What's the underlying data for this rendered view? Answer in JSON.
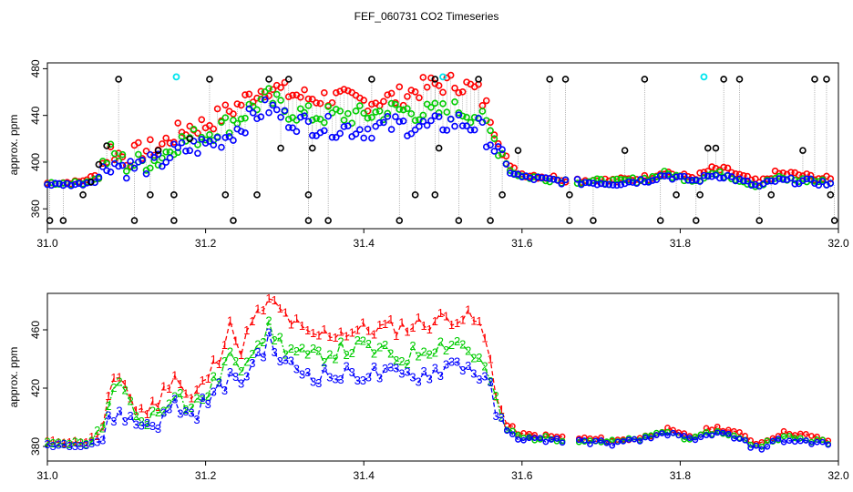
{
  "title": "FEF_060731  CO2 Timeseries",
  "colors": {
    "series1": "#ff0000",
    "series2": "#00cc00",
    "series3": "#0000ff",
    "black": "#000000",
    "cyan": "#00e5ee",
    "connector": "#9a9a9a"
  },
  "chart_data": [
    {
      "type": "scatter",
      "id": "panel-top",
      "ylabel": "approx. ppm",
      "xlabel": "",
      "xlim": [
        31.0,
        32.0
      ],
      "ylim": [
        343,
        485
      ],
      "xticks": [
        "31.0",
        "31.2",
        "31.4",
        "31.6",
        "31.8",
        "32.0"
      ],
      "yticks": [
        "360",
        "400",
        "440",
        "480"
      ],
      "legend": "none",
      "anchors_red": [
        [
          31.0,
          382
        ],
        [
          31.04,
          383
        ],
        [
          31.06,
          388
        ],
        [
          31.08,
          410
        ],
        [
          31.1,
          403
        ],
        [
          31.12,
          410
        ],
        [
          31.14,
          412
        ],
        [
          31.16,
          423
        ],
        [
          31.18,
          430
        ],
        [
          31.2,
          432
        ],
        [
          31.22,
          440
        ],
        [
          31.24,
          448
        ],
        [
          31.26,
          458
        ],
        [
          31.28,
          465
        ],
        [
          31.3,
          460
        ],
        [
          31.33,
          455
        ],
        [
          31.36,
          455
        ],
        [
          31.4,
          452
        ],
        [
          31.44,
          455
        ],
        [
          31.48,
          465
        ],
        [
          31.52,
          468
        ],
        [
          31.545,
          460
        ],
        [
          31.56,
          440
        ],
        [
          31.575,
          415
        ],
        [
          31.585,
          395
        ],
        [
          31.6,
          390
        ],
        [
          31.66,
          385
        ],
        [
          31.72,
          384
        ],
        [
          31.76,
          387
        ],
        [
          31.78,
          392
        ],
        [
          31.8,
          388
        ],
        [
          31.82,
          387
        ],
        [
          31.84,
          394
        ],
        [
          31.86,
          393
        ],
        [
          31.88,
          387
        ],
        [
          31.9,
          382
        ],
        [
          31.92,
          390
        ],
        [
          31.94,
          390
        ],
        [
          31.97,
          387
        ],
        [
          31.99,
          385
        ]
      ],
      "anchors_green": [
        [
          31.0,
          382
        ],
        [
          31.04,
          382
        ],
        [
          31.06,
          385
        ],
        [
          31.08,
          408
        ],
        [
          31.1,
          398
        ],
        [
          31.12,
          400
        ],
        [
          31.14,
          402
        ],
        [
          31.16,
          415
        ],
        [
          31.18,
          420
        ],
        [
          31.2,
          424
        ],
        [
          31.22,
          430
        ],
        [
          31.24,
          437
        ],
        [
          31.26,
          448
        ],
        [
          31.28,
          455
        ],
        [
          31.3,
          445
        ],
        [
          31.33,
          440
        ],
        [
          31.36,
          440
        ],
        [
          31.4,
          440
        ],
        [
          31.44,
          445
        ],
        [
          31.48,
          442
        ],
        [
          31.52,
          445
        ],
        [
          31.545,
          440
        ],
        [
          31.56,
          425
        ],
        [
          31.575,
          408
        ],
        [
          31.585,
          393
        ],
        [
          31.6,
          388
        ],
        [
          31.66,
          384
        ],
        [
          31.72,
          383
        ],
        [
          31.76,
          386
        ],
        [
          31.78,
          390
        ],
        [
          31.8,
          387
        ],
        [
          31.82,
          385
        ],
        [
          31.84,
          390
        ],
        [
          31.86,
          389
        ],
        [
          31.88,
          384
        ],
        [
          31.9,
          380
        ],
        [
          31.92,
          386
        ],
        [
          31.94,
          385
        ],
        [
          31.97,
          384
        ],
        [
          31.99,
          382
        ]
      ],
      "anchors_blue": [
        [
          31.0,
          381
        ],
        [
          31.04,
          381
        ],
        [
          31.06,
          384
        ],
        [
          31.08,
          400
        ],
        [
          31.1,
          395
        ],
        [
          31.12,
          397
        ],
        [
          31.14,
          399
        ],
        [
          31.16,
          408
        ],
        [
          31.18,
          412
        ],
        [
          31.2,
          415
        ],
        [
          31.22,
          420
        ],
        [
          31.24,
          428
        ],
        [
          31.26,
          440
        ],
        [
          31.28,
          447
        ],
        [
          31.3,
          438
        ],
        [
          31.33,
          432
        ],
        [
          31.36,
          430
        ],
        [
          31.4,
          428
        ],
        [
          31.44,
          432
        ],
        [
          31.48,
          430
        ],
        [
          31.52,
          435
        ],
        [
          31.545,
          430
        ],
        [
          31.56,
          418
        ],
        [
          31.575,
          402
        ],
        [
          31.585,
          392
        ],
        [
          31.6,
          387
        ],
        [
          31.66,
          383
        ],
        [
          31.72,
          382
        ],
        [
          31.76,
          385
        ],
        [
          31.78,
          389
        ],
        [
          31.8,
          386
        ],
        [
          31.82,
          384
        ],
        [
          31.84,
          389
        ],
        [
          31.86,
          388
        ],
        [
          31.88,
          383
        ],
        [
          31.9,
          379
        ],
        [
          31.92,
          384
        ],
        [
          31.94,
          384
        ],
        [
          31.97,
          383
        ],
        [
          31.99,
          381
        ]
      ],
      "black_points": [
        [
          31.003,
          350
        ],
        [
          31.02,
          350
        ],
        [
          31.045,
          372
        ],
        [
          31.055,
          383
        ],
        [
          31.065,
          398
        ],
        [
          31.075,
          414
        ],
        [
          31.09,
          471
        ],
        [
          31.11,
          350
        ],
        [
          31.13,
          372
        ],
        [
          31.14,
          410
        ],
        [
          31.16,
          350
        ],
        [
          31.16,
          372
        ],
        [
          31.18,
          420
        ],
        [
          31.205,
          471
        ],
        [
          31.225,
          372
        ],
        [
          31.235,
          350
        ],
        [
          31.265,
          372
        ],
        [
          31.28,
          471
        ],
        [
          31.295,
          412
        ],
        [
          31.305,
          471
        ],
        [
          31.33,
          372
        ],
        [
          31.33,
          350
        ],
        [
          31.335,
          412
        ],
        [
          31.355,
          350
        ],
        [
          31.41,
          471
        ],
        [
          31.445,
          350
        ],
        [
          31.465,
          372
        ],
        [
          31.49,
          372
        ],
        [
          31.49,
          471
        ],
        [
          31.495,
          412
        ],
        [
          31.52,
          350
        ],
        [
          31.545,
          471
        ],
        [
          31.56,
          350
        ],
        [
          31.575,
          372
        ],
        [
          31.595,
          410
        ],
        [
          31.635,
          471
        ],
        [
          31.655,
          471
        ],
        [
          31.66,
          372
        ],
        [
          31.66,
          350
        ],
        [
          31.69,
          350
        ],
        [
          31.73,
          410
        ],
        [
          31.755,
          471
        ],
        [
          31.775,
          350
        ],
        [
          31.795,
          372
        ],
        [
          31.82,
          350
        ],
        [
          31.825,
          372
        ],
        [
          31.835,
          412
        ],
        [
          31.845,
          412
        ],
        [
          31.855,
          471
        ],
        [
          31.875,
          471
        ],
        [
          31.9,
          350
        ],
        [
          31.915,
          372
        ],
        [
          31.955,
          410
        ],
        [
          31.97,
          471
        ],
        [
          31.985,
          471
        ],
        [
          31.99,
          372
        ],
        [
          31.995,
          350
        ]
      ],
      "cyan_points": [
        [
          31.163,
          473
        ],
        [
          31.5,
          473
        ],
        [
          31.83,
          473
        ]
      ]
    },
    {
      "type": "line",
      "id": "panel-bottom",
      "ylabel": "approx. ppm",
      "xlabel": "",
      "xlim": [
        31.0,
        32.0
      ],
      "ylim": [
        370,
        485
      ],
      "xticks": [
        "31.0",
        "31.2",
        "31.4",
        "31.6",
        "31.8",
        "32.0"
      ],
      "yticks": [
        "380",
        "420",
        "460"
      ],
      "legend": "none",
      "series": [
        {
          "name": "1",
          "marker": "1"
        },
        {
          "name": "2",
          "marker": "2"
        },
        {
          "name": "3",
          "marker": "3"
        }
      ],
      "anchors_red": [
        [
          31.0,
          383
        ],
        [
          31.05,
          383
        ],
        [
          31.07,
          392
        ],
        [
          31.08,
          418
        ],
        [
          31.095,
          430
        ],
        [
          31.11,
          405
        ],
        [
          31.13,
          405
        ],
        [
          31.145,
          415
        ],
        [
          31.16,
          432
        ],
        [
          31.18,
          410
        ],
        [
          31.2,
          425
        ],
        [
          31.22,
          445
        ],
        [
          31.23,
          470
        ],
        [
          31.24,
          442
        ],
        [
          31.26,
          465
        ],
        [
          31.28,
          480
        ],
        [
          31.3,
          470
        ],
        [
          31.33,
          455
        ],
        [
          31.36,
          458
        ],
        [
          31.4,
          460
        ],
        [
          31.45,
          462
        ],
        [
          31.48,
          465
        ],
        [
          31.52,
          470
        ],
        [
          31.545,
          465
        ],
        [
          31.56,
          440
        ],
        [
          31.57,
          410
        ],
        [
          31.58,
          395
        ],
        [
          31.6,
          388
        ],
        [
          31.66,
          386
        ],
        [
          31.72,
          384
        ],
        [
          31.76,
          387
        ],
        [
          31.78,
          392
        ],
        [
          31.8,
          388
        ],
        [
          31.82,
          387
        ],
        [
          31.84,
          393
        ],
        [
          31.86,
          392
        ],
        [
          31.88,
          387
        ],
        [
          31.9,
          382
        ],
        [
          31.92,
          388
        ],
        [
          31.94,
          390
        ],
        [
          31.97,
          386
        ],
        [
          31.99,
          384
        ]
      ],
      "anchors_green": [
        [
          31.0,
          382
        ],
        [
          31.05,
          382
        ],
        [
          31.07,
          388
        ],
        [
          31.08,
          412
        ],
        [
          31.095,
          428
        ],
        [
          31.11,
          398
        ],
        [
          31.13,
          400
        ],
        [
          31.145,
          405
        ],
        [
          31.16,
          420
        ],
        [
          31.18,
          405
        ],
        [
          31.2,
          415
        ],
        [
          31.22,
          430
        ],
        [
          31.23,
          445
        ],
        [
          31.24,
          430
        ],
        [
          31.26,
          450
        ],
        [
          31.28,
          460
        ],
        [
          31.3,
          448
        ],
        [
          31.33,
          440
        ],
        [
          31.36,
          445
        ],
        [
          31.4,
          448
        ],
        [
          31.45,
          440
        ],
        [
          31.48,
          448
        ],
        [
          31.52,
          452
        ],
        [
          31.545,
          440
        ],
        [
          31.56,
          425
        ],
        [
          31.57,
          402
        ],
        [
          31.58,
          392
        ],
        [
          31.6,
          386
        ],
        [
          31.66,
          385
        ],
        [
          31.72,
          383
        ],
        [
          31.76,
          386
        ],
        [
          31.78,
          391
        ],
        [
          31.8,
          387
        ],
        [
          31.82,
          385
        ],
        [
          31.84,
          390
        ],
        [
          31.86,
          389
        ],
        [
          31.88,
          384
        ],
        [
          31.9,
          380
        ],
        [
          31.92,
          386
        ],
        [
          31.94,
          386
        ],
        [
          31.97,
          384
        ],
        [
          31.99,
          382
        ]
      ],
      "anchors_blue": [
        [
          31.0,
          381
        ],
        [
          31.05,
          381
        ],
        [
          31.07,
          385
        ],
        [
          31.08,
          400
        ],
        [
          31.095,
          403
        ],
        [
          31.11,
          395
        ],
        [
          31.13,
          396
        ],
        [
          31.145,
          397
        ],
        [
          31.16,
          410
        ],
        [
          31.18,
          400
        ],
        [
          31.2,
          410
        ],
        [
          31.22,
          420
        ],
        [
          31.23,
          430
        ],
        [
          31.24,
          420
        ],
        [
          31.26,
          438
        ],
        [
          31.28,
          452
        ],
        [
          31.3,
          436
        ],
        [
          31.33,
          430
        ],
        [
          31.36,
          428
        ],
        [
          31.4,
          430
        ],
        [
          31.45,
          428
        ],
        [
          31.48,
          430
        ],
        [
          31.52,
          438
        ],
        [
          31.545,
          430
        ],
        [
          31.56,
          418
        ],
        [
          31.57,
          398
        ],
        [
          31.58,
          390
        ],
        [
          31.6,
          385
        ],
        [
          31.66,
          384
        ],
        [
          31.72,
          382
        ],
        [
          31.76,
          385
        ],
        [
          31.78,
          390
        ],
        [
          31.8,
          386
        ],
        [
          31.82,
          384
        ],
        [
          31.84,
          389
        ],
        [
          31.86,
          388
        ],
        [
          31.88,
          383
        ],
        [
          31.9,
          378
        ],
        [
          31.92,
          384
        ],
        [
          31.94,
          384
        ],
        [
          31.97,
          383
        ],
        [
          31.99,
          381
        ]
      ]
    }
  ]
}
